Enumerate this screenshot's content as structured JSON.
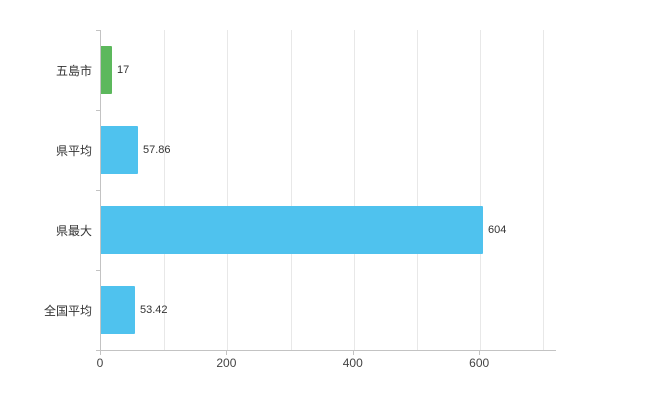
{
  "chart_data": {
    "type": "bar",
    "orientation": "horizontal",
    "title": "",
    "xlabel": "",
    "ylabel": "",
    "categories": [
      "五島市",
      "県平均",
      "県最大",
      "全国平均"
    ],
    "values": [
      17,
      57.86,
      604,
      53.42
    ],
    "value_labels": [
      "17",
      "57.86",
      "604",
      "53.42"
    ],
    "bar_colors": [
      "#5cb85c",
      "#4fc2ee",
      "#4fc2ee",
      "#4fc2ee"
    ],
    "xlim": [
      0,
      720
    ],
    "x_ticks": [
      0,
      200,
      400,
      600
    ],
    "x_tick_labels": [
      "0",
      "200",
      "400",
      "600"
    ],
    "gridline_interval": 100,
    "grid": true,
    "legend": "none",
    "colors": {
      "axis": "#c3c3c3",
      "gridline": "#e8e8e8",
      "text": "#333333"
    }
  }
}
